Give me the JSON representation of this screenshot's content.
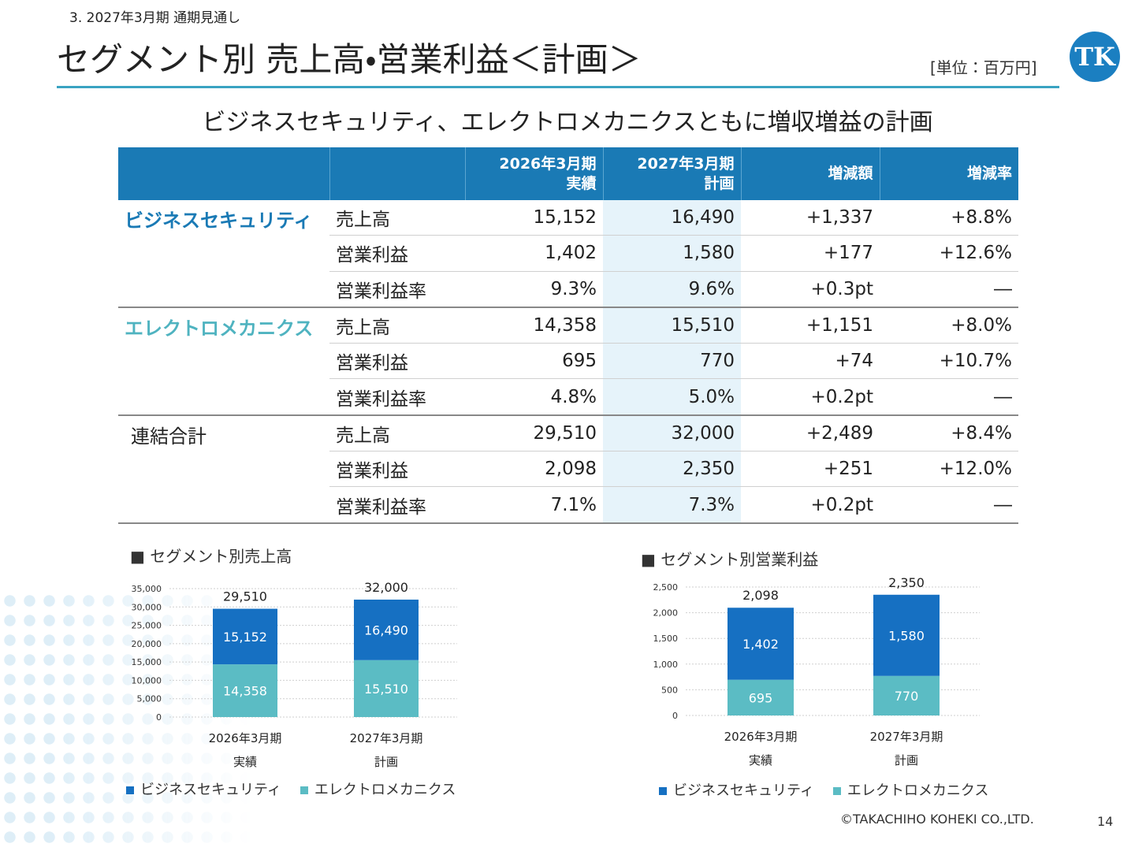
{
  "header": {
    "section": "3.  2027年3月期 通期見通し",
    "title": "セグメント別 売上高・営業利益＜計画＞",
    "unit": "[単位：百万円]",
    "logo": "TK",
    "subtitle": "ビジネスセキュリティ、エレクトロメカニクスともに増収増益の計画"
  },
  "table": {
    "columns": [
      "2026年3月期\n実績",
      "2027年3月期\n計画",
      "増減額",
      "増減率"
    ],
    "groups": [
      {
        "name": "ビジネスセキュリティ",
        "color": "#1a7ab5",
        "rows": [
          [
            "売上高",
            "15,152",
            "16,490",
            "+1,337",
            "+8.8%"
          ],
          [
            "営業利益",
            "1,402",
            "1,580",
            "+177",
            "+12.6%"
          ],
          [
            "営業利益率",
            "9.3%",
            "9.6%",
            "+0.3pt",
            "―"
          ]
        ]
      },
      {
        "name": "エレクトロメカニクス",
        "color": "#4fb3c0",
        "rows": [
          [
            "売上高",
            "14,358",
            "15,510",
            "+1,151",
            "+8.0%"
          ],
          [
            "営業利益",
            "695",
            "770",
            "+74",
            "+10.7%"
          ],
          [
            "営業利益率",
            "4.8%",
            "5.0%",
            "+0.2pt",
            "―"
          ]
        ]
      },
      {
        "name": "連結合計",
        "color": "#222222",
        "rows": [
          [
            "売上高",
            "29,510",
            "32,000",
            "+2,489",
            "+8.4%"
          ],
          [
            "営業利益",
            "2,098",
            "2,350",
            "+251",
            "+12.0%"
          ],
          [
            "営業利益率",
            "7.1%",
            "7.3%",
            "+0.2pt",
            "―"
          ]
        ]
      }
    ]
  },
  "chart_data": [
    {
      "type": "stacked-bar",
      "title": "■ セグメント別売上高",
      "categories": [
        "2026年3月期\n実績",
        "2027年3月期\n計画"
      ],
      "series": [
        {
          "name": "ビジネスセキュリティ",
          "color": "#1670c2",
          "values": [
            15152,
            16490
          ],
          "value_labels": [
            "15,152",
            "16,490"
          ]
        },
        {
          "name": "エレクトロメカニクス",
          "color": "#5bbcc4",
          "values": [
            14358,
            15510
          ],
          "value_labels": [
            "14,358",
            "15,510"
          ]
        }
      ],
      "totals": [
        29510,
        32000
      ],
      "total_labels": [
        "29,510",
        "32,000"
      ],
      "ylim": [
        0,
        35000
      ],
      "yticks": [
        0,
        {
          "value": 5000,
          "label": "5,000"
        },
        {
          "value": 10000,
          "label": "10,000"
        },
        {
          "value": 15000,
          "label": "15,000"
        },
        {
          "value": 20000,
          "label": "20,000"
        },
        {
          "value": 25000,
          "label": "25,000"
        },
        {
          "value": 30000,
          "label": "30,000"
        },
        {
          "value": 35000,
          "label": "35,000"
        }
      ],
      "grid": true
    },
    {
      "type": "stacked-bar",
      "title": "■ セグメント別営業利益",
      "categories": [
        "2026年3月期\n実績",
        "2027年3月期\n計画"
      ],
      "series": [
        {
          "name": "ビジネスセキュリティ",
          "color": "#1670c2",
          "values": [
            1402,
            1580
          ],
          "value_labels": [
            "1,402",
            "1,580"
          ]
        },
        {
          "name": "エレクトロメカニクス",
          "color": "#5bbcc4",
          "values": [
            695,
            770
          ]
        }
      ],
      "totals": [
        2098,
        2350
      ],
      "total_labels": [
        "2,098",
        "2,350"
      ],
      "ylim": [
        0,
        2500
      ],
      "yticks": [
        0,
        500,
        {
          "value": 1000,
          "label": "1,000"
        },
        {
          "value": 1500,
          "label": "1,500"
        },
        {
          "value": 2000,
          "label": "2,000"
        },
        {
          "value": 2500,
          "label": "2,500"
        }
      ],
      "grid": true
    }
  ],
  "footer": {
    "copyright": "©TAKACHIHO KOHEKI CO.,LTD.",
    "page": "14"
  }
}
